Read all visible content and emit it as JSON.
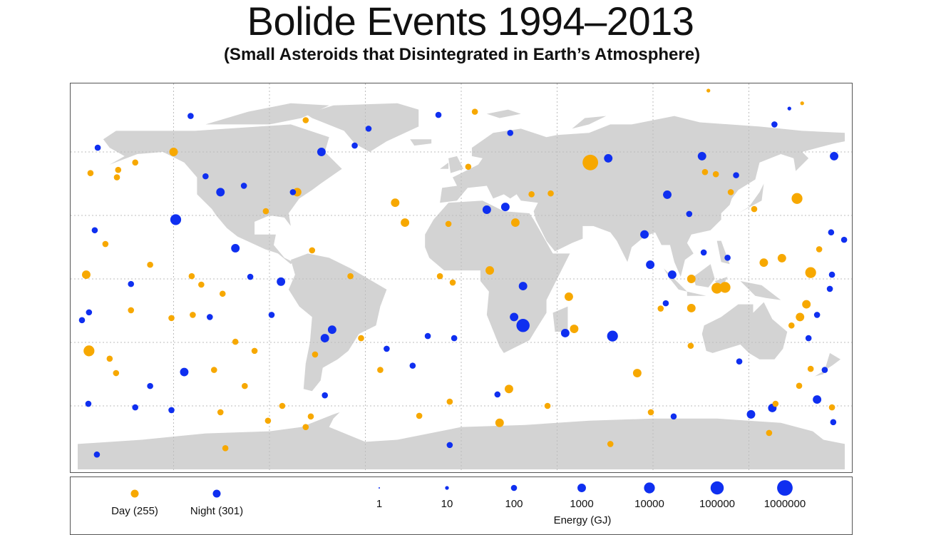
{
  "title": "Bolide Events 1994–2013",
  "subtitle": "(Small Asteroids that Disintegrated in Earth’s Atmosphere)",
  "colors": {
    "day": "#f7a800",
    "night": "#0f2ff0",
    "land": "#d3d3d3",
    "grid": "#bdbdbd"
  },
  "legend": {
    "day_label": "Day (255)",
    "night_label": "Night (301)",
    "energy_title": "Energy (GJ)",
    "energy_levels": [
      "1",
      "10",
      "100",
      "1000",
      "10000",
      "100000",
      "1000000"
    ]
  },
  "chart_data": {
    "type": "scatter",
    "projection": "equirectangular",
    "xlim": [
      -180,
      180
    ],
    "ylim": [
      -90,
      90
    ],
    "grid": true,
    "grid_step_deg": {
      "lon": 45,
      "lat": 30
    },
    "size_encoding": "Energy (GJ), log scale",
    "color_encoding": {
      "day": "#f7a800",
      "night": "#0f2ff0"
    },
    "point_fields": [
      "lon",
      "lat",
      "time_of_day",
      "energy_gj"
    ],
    "points": [
      [
        60.6,
        55,
        "day",
        1000000
      ],
      [
        157.6,
        38,
        "day",
        10000
      ],
      [
        120,
        -4.4,
        "day",
        10000
      ],
      [
        123.8,
        -4,
        "day",
        10000
      ],
      [
        -174.7,
        -34,
        "day",
        10000
      ],
      [
        -176,
        2,
        "day",
        1000
      ],
      [
        164,
        3,
        "day",
        10000
      ],
      [
        29,
        -22,
        "night",
        100000
      ],
      [
        71,
        -27,
        "night",
        10000
      ],
      [
        -134,
        28,
        "night",
        10000
      ],
      [
        -130,
        -44,
        "night",
        1000
      ],
      [
        -65.6,
        60,
        "night",
        1000
      ],
      [
        69,
        57,
        "night",
        1000
      ],
      [
        88.7,
        6.7,
        "night",
        1000
      ],
      [
        146,
        -61,
        "night",
        1000
      ],
      [
        167,
        -57,
        "night",
        1000
      ],
      [
        -84.6,
        -1.3,
        "night",
        1000
      ],
      [
        -106,
        14.5,
        "night",
        1000
      ],
      [
        -31,
        36,
        "day",
        1000
      ],
      [
        -26.4,
        26.6,
        "day",
        1000
      ],
      [
        25.4,
        26.6,
        "day",
        1000
      ],
      [
        20.7,
        34,
        "night",
        1000
      ],
      [
        6.4,
        79,
        "day",
        100
      ],
      [
        116,
        89,
        "day",
        10
      ],
      [
        -10.7,
        77.5,
        "night",
        100
      ],
      [
        -43.5,
        71,
        "night",
        100
      ],
      [
        -50,
        63,
        "night",
        100
      ],
      [
        -127,
        77,
        "night",
        100
      ],
      [
        -73,
        75,
        "day",
        100
      ],
      [
        113,
        58,
        "night",
        1000
      ],
      [
        175,
        58,
        "night",
        1000
      ],
      [
        147,
        73,
        "night",
        100
      ],
      [
        154,
        80.5,
        "night",
        10
      ],
      [
        160,
        83,
        "day",
        10
      ],
      [
        23,
        69,
        "night",
        100
      ],
      [
        -113,
        41,
        "night",
        1000
      ],
      [
        -77,
        41,
        "day",
        1000
      ],
      [
        -79,
        41,
        "night",
        100
      ],
      [
        -91.7,
        32,
        "day",
        100
      ],
      [
        -102,
        44,
        "night",
        100
      ],
      [
        -120,
        48.5,
        "night",
        100
      ],
      [
        -161,
        51.5,
        "day",
        100
      ],
      [
        -161.6,
        48,
        "day",
        100
      ],
      [
        -153,
        55,
        "day",
        100
      ],
      [
        -170.6,
        62,
        "night",
        100
      ],
      [
        -135,
        60,
        "day",
        1000
      ],
      [
        -174,
        50,
        "day",
        100
      ],
      [
        -167,
        16.5,
        "day",
        100
      ],
      [
        -172,
        23,
        "night",
        100
      ],
      [
        -155,
        -2.4,
        "night",
        100
      ],
      [
        -146,
        6.7,
        "day",
        100
      ],
      [
        -126.5,
        1.3,
        "day",
        100
      ],
      [
        -122,
        -2.7,
        "day",
        100
      ],
      [
        -112,
        -7,
        "day",
        100
      ],
      [
        -99,
        1,
        "night",
        100
      ],
      [
        -68.6,
        -35.7,
        "day",
        100
      ],
      [
        -60.6,
        -24,
        "night",
        1000
      ],
      [
        -64,
        -28,
        "night",
        1000
      ],
      [
        -70,
        13.5,
        "day",
        100
      ],
      [
        -52,
        1.3,
        "day",
        100
      ],
      [
        -47,
        -28,
        "day",
        100
      ],
      [
        -22.8,
        -41,
        "night",
        100
      ],
      [
        -64,
        -55,
        "night",
        100
      ],
      [
        -70.6,
        -65,
        "day",
        100
      ],
      [
        -73,
        -70,
        "day",
        100
      ],
      [
        -90.7,
        -67,
        "day",
        100
      ],
      [
        -113,
        -63,
        "day",
        100
      ],
      [
        -153,
        -60.7,
        "night",
        100
      ],
      [
        -171,
        -83,
        "night",
        100
      ],
      [
        -136,
        -62,
        "night",
        100
      ],
      [
        -146,
        -50.6,
        "night",
        100
      ],
      [
        -101.6,
        -50.6,
        "day",
        100
      ],
      [
        -19.7,
        -64.7,
        "day",
        100
      ],
      [
        18,
        -68,
        "day",
        1000
      ],
      [
        -5.4,
        -78.5,
        "night",
        100
      ],
      [
        22.4,
        -52,
        "day",
        1000
      ],
      [
        17,
        -54.6,
        "night",
        100
      ],
      [
        40.5,
        -60,
        "day",
        100
      ],
      [
        50.5,
        -8.4,
        "day",
        1000
      ],
      [
        53,
        -23.6,
        "day",
        1000
      ],
      [
        48.8,
        -25.6,
        "night",
        1000
      ],
      [
        82.6,
        -44.5,
        "day",
        1000
      ],
      [
        108,
        -13.8,
        "day",
        1000
      ],
      [
        108,
        0,
        "day",
        1000
      ],
      [
        99,
        2,
        "night",
        1000
      ],
      [
        86,
        21,
        "night",
        1000
      ],
      [
        142,
        7.7,
        "day",
        1000
      ],
      [
        150.5,
        9.8,
        "day",
        1000
      ],
      [
        162,
        -12,
        "day",
        1000
      ],
      [
        159,
        -18,
        "day",
        1000
      ],
      [
        168,
        14,
        "day",
        100
      ],
      [
        173.6,
        22,
        "night",
        100
      ],
      [
        179.7,
        18.5,
        "night",
        100
      ],
      [
        173,
        -4.7,
        "night",
        100
      ],
      [
        107.7,
        -31.6,
        "day",
        100
      ],
      [
        136,
        -64,
        "night",
        1000
      ],
      [
        130.5,
        -39,
        "night",
        100
      ],
      [
        164,
        -42.5,
        "day",
        100
      ],
      [
        170.6,
        -43,
        "night",
        100
      ],
      [
        174,
        -60.7,
        "day",
        100
      ],
      [
        174.6,
        -67.7,
        "night",
        100
      ],
      [
        144.5,
        -72.8,
        "day",
        100
      ],
      [
        70,
        -78,
        "day",
        100
      ],
      [
        -110.7,
        -80,
        "day",
        100
      ],
      [
        29,
        -3.4,
        "night",
        1000
      ],
      [
        24.8,
        -18,
        "night",
        1000
      ],
      [
        13.4,
        4,
        "day",
        1000
      ],
      [
        -10,
        1.3,
        "day",
        100
      ],
      [
        -4,
        -1.7,
        "day",
        100
      ],
      [
        12,
        32.7,
        "night",
        1000
      ],
      [
        3.3,
        53,
        "day",
        100
      ],
      [
        -6,
        26,
        "day",
        100
      ],
      [
        33,
        40,
        "day",
        100
      ],
      [
        42,
        40.4,
        "day",
        100
      ],
      [
        96.7,
        39.8,
        "night",
        1000
      ],
      [
        107,
        30.7,
        "night",
        100
      ],
      [
        114.4,
        50.5,
        "day",
        100
      ],
      [
        119.5,
        49.5,
        "day",
        100
      ],
      [
        129,
        49,
        "night",
        100
      ],
      [
        126.5,
        41,
        "day",
        100
      ],
      [
        113.8,
        12.5,
        "night",
        100
      ],
      [
        125,
        10,
        "night",
        100
      ],
      [
        137.5,
        33,
        "day",
        100
      ],
      [
        96,
        -11.5,
        "night",
        100
      ],
      [
        93.6,
        -14,
        "day",
        100
      ],
      [
        174,
        2,
        "night",
        100
      ],
      [
        167,
        -17,
        "night",
        100
      ],
      [
        155,
        -22,
        "day",
        100
      ],
      [
        163,
        -28,
        "night",
        100
      ],
      [
        147.5,
        -59,
        "day",
        100
      ],
      [
        158.6,
        -50.5,
        "day",
        100
      ],
      [
        99.7,
        -65,
        "night",
        100
      ],
      [
        89,
        -63,
        "day",
        100
      ],
      [
        -165,
        -37.7,
        "day",
        100
      ],
      [
        -162,
        -44.5,
        "day",
        100
      ],
      [
        -175,
        -59,
        "night",
        100
      ],
      [
        -178,
        -19.5,
        "night",
        100
      ],
      [
        -174.7,
        -15.8,
        "night",
        100
      ],
      [
        -155,
        -14.8,
        "day",
        100
      ],
      [
        -126,
        -17,
        "day",
        100
      ],
      [
        -118,
        -18,
        "night",
        100
      ],
      [
        -106,
        -29.7,
        "day",
        100
      ],
      [
        -97,
        -34,
        "day",
        100
      ],
      [
        -89,
        -17,
        "night",
        100
      ],
      [
        -15.7,
        -27,
        "night",
        100
      ],
      [
        -3.3,
        -28,
        "night",
        100
      ],
      [
        -5.4,
        -58,
        "day",
        100
      ],
      [
        -35,
        -33,
        "night",
        100
      ],
      [
        -38,
        -43,
        "day",
        100
      ],
      [
        -84,
        -60,
        "day",
        100
      ],
      [
        -116,
        -43,
        "day",
        100
      ],
      [
        -136,
        -18.5,
        "day",
        100
      ]
    ]
  }
}
